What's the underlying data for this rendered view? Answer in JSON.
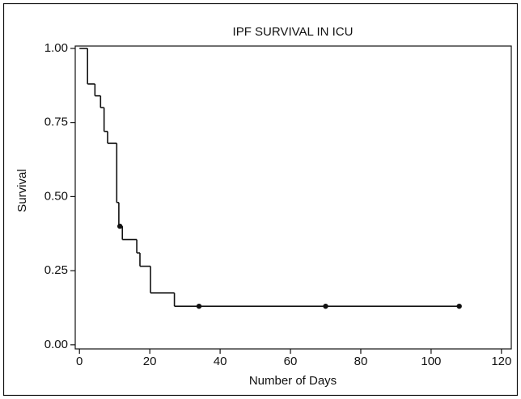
{
  "chart_data": {
    "type": "step",
    "title": "IPF SURVIVAL IN ICU",
    "x_label": "Number of Days",
    "y_label": "Survival",
    "x": [
      0,
      2.3,
      4.4,
      6,
      7,
      8,
      10.6,
      11.2,
      12.2,
      16.3,
      17.2,
      20.2,
      27
    ],
    "values": [
      1.0,
      0.88,
      0.84,
      0.8,
      0.72,
      0.68,
      0.48,
      0.4,
      0.355,
      0.31,
      0.265,
      0.175,
      0.13
    ],
    "censored": {
      "x": [
        11.5,
        34,
        70,
        108
      ],
      "values": [
        0.4,
        0.13,
        0.13,
        0.13
      ]
    },
    "color": "#111111",
    "xlim": [
      -1.2,
      122.8
    ],
    "ylim": [
      -0.014,
      1.008
    ],
    "xticks": [
      0,
      20,
      40,
      60,
      80,
      100,
      120
    ],
    "yticks": [
      {
        "value": 0,
        "label": "0.00"
      },
      {
        "value": 0.25,
        "label": "0.25"
      },
      {
        "value": 0.5,
        "label": "0.50"
      },
      {
        "value": 0.75,
        "label": "0.75"
      },
      {
        "value": 1,
        "label": "1.00"
      }
    ]
  }
}
